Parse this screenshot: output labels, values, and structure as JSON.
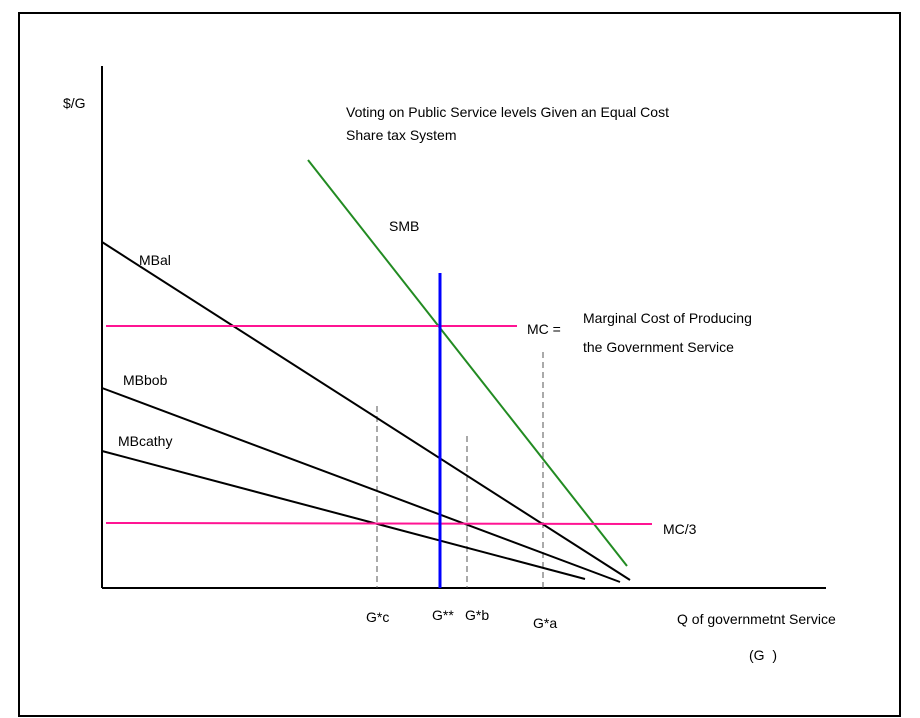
{
  "title_line1": "Voting on Public Service levels Given an Equal Cost",
  "title_line2": "Share tax System",
  "y_axis_label": "$/G",
  "x_axis_label": "Q of governmetnt Service",
  "x_axis_unit": "(G  )",
  "curves": {
    "smb": "SMB",
    "mb_al": "MBal",
    "mb_bob": "MBbob",
    "mb_cathy": "MBcathy"
  },
  "mc_label": "MC =",
  "mc_desc_line1": "Marginal Cost of Producing",
  "mc_desc_line2": "the Government Service",
  "mc3_label": "MC/3",
  "ticks": {
    "g_c": "G*c",
    "g_star_star": "G**",
    "g_b": "G*b",
    "g_a": "G*a"
  },
  "colors": {
    "smb": "#228B22",
    "mc": "#FF1493",
    "g_star_star": "#0000FF",
    "individual": "#000000",
    "guides": "#555555"
  }
}
